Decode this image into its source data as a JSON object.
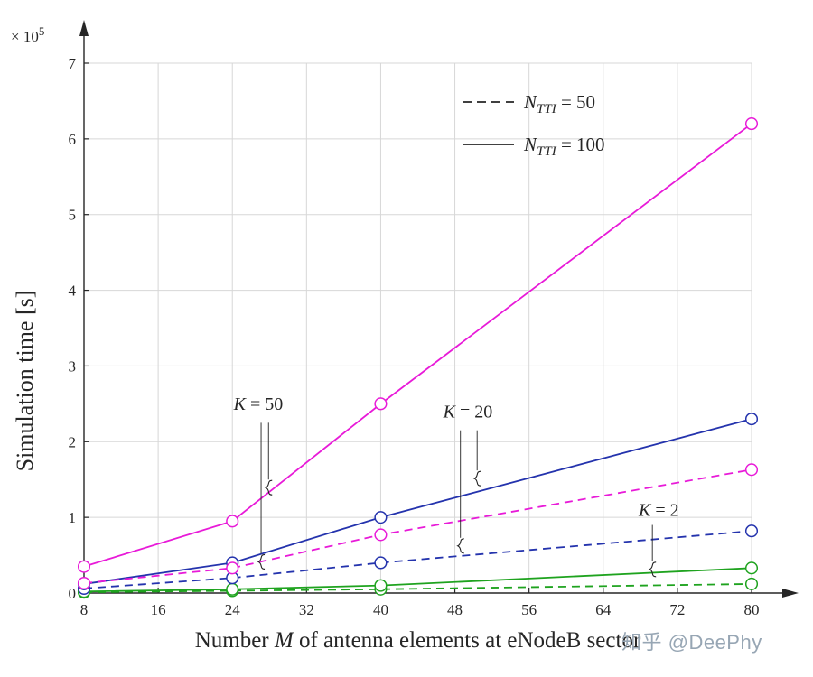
{
  "watermark": {
    "text": "知乎 @DeePhy"
  },
  "chart_data": {
    "type": "line",
    "title": "",
    "xlabel": {
      "pre": "Number ",
      "var": "M",
      "post": " of antenna elements at eNodeB sector"
    },
    "ylabel": "Simulation time [s]",
    "y_exponent": {
      "base": "× 10",
      "power": "5"
    },
    "xlim": [
      8,
      80
    ],
    "ylim": [
      0,
      7
    ],
    "x_ticks": [
      8,
      16,
      24,
      32,
      40,
      48,
      56,
      64,
      72,
      80
    ],
    "y_ticks": [
      0,
      1,
      2,
      3,
      4,
      5,
      6,
      7
    ],
    "grid": true,
    "marker": "circle",
    "values_unit": "1e5 seconds",
    "x": [
      8,
      24,
      40,
      80
    ],
    "series": [
      {
        "name": "K = 2, N_TTI = 50",
        "K": 2,
        "N_TTI": 50,
        "color": "#1fa31f",
        "style": "dashed",
        "values": [
          0.01,
          0.03,
          0.05,
          0.12
        ]
      },
      {
        "name": "K = 2, N_TTI = 100",
        "K": 2,
        "N_TTI": 100,
        "color": "#1fa31f",
        "style": "solid",
        "values": [
          0.02,
          0.05,
          0.1,
          0.33
        ]
      },
      {
        "name": "K = 20, N_TTI = 50",
        "K": 20,
        "N_TTI": 50,
        "color": "#2433ad",
        "style": "dashed",
        "values": [
          0.06,
          0.2,
          0.4,
          0.82
        ]
      },
      {
        "name": "K = 20, N_TTI = 100",
        "K": 20,
        "N_TTI": 100,
        "color": "#2433ad",
        "style": "solid",
        "values": [
          0.12,
          0.4,
          1.0,
          2.3
        ]
      },
      {
        "name": "K = 50, N_TTI = 50",
        "K": 50,
        "N_TTI": 50,
        "color": "#e81ad8",
        "style": "dashed",
        "values": [
          0.13,
          0.33,
          0.77,
          1.63
        ]
      },
      {
        "name": "K = 50, N_TTI = 100",
        "K": 50,
        "N_TTI": 100,
        "color": "#e81ad8",
        "style": "solid",
        "values": [
          0.35,
          0.95,
          2.5,
          6.2
        ]
      }
    ],
    "legend": {
      "position": "upper-center-right",
      "entries": [
        {
          "var": "N",
          "sub": "TTI",
          "rest": " = 50",
          "style": "dashed"
        },
        {
          "var": "N",
          "sub": "TTI",
          "rest": " = 100",
          "style": "solid"
        }
      ]
    },
    "annotations": [
      {
        "var": "K",
        "rest": " = 50",
        "x": 26.8,
        "y": 2.42,
        "pointers": [
          {
            "x": 27.9,
            "from": 2.25,
            "to": 1.5
          },
          {
            "x": 27.1,
            "from": 2.25,
            "to": 0.52
          }
        ]
      },
      {
        "var": "K",
        "rest": " = 20",
        "x": 49.4,
        "y": 2.32,
        "pointers": [
          {
            "x": 50.4,
            "from": 2.15,
            "to": 1.62
          },
          {
            "x": 48.6,
            "from": 2.15,
            "to": 0.73
          }
        ]
      },
      {
        "var": "K",
        "rest": " = 2",
        "x": 70.0,
        "y": 1.02,
        "pointers": [
          {
            "x": 69.3,
            "from": 0.9,
            "to": 0.42
          }
        ]
      }
    ],
    "colors": {
      "axis": "#262626",
      "grid": "#d7d7d7"
    }
  }
}
